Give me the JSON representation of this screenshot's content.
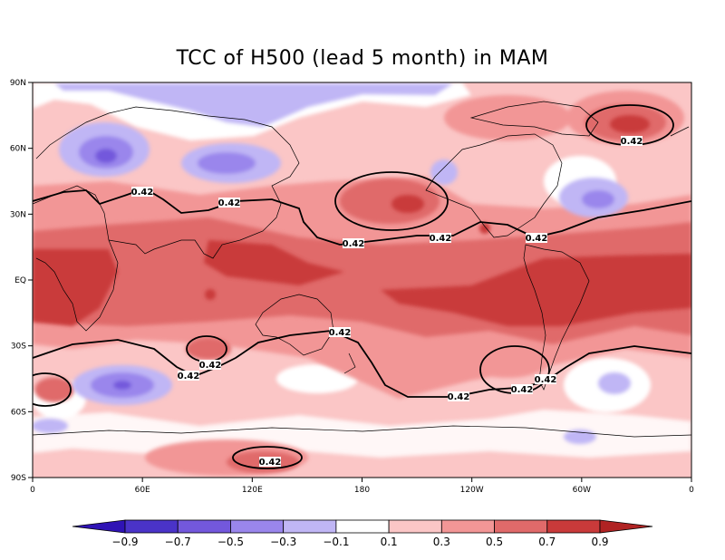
{
  "title": "TCC of H500 (lead 5 month) in MAM",
  "x_ticks": [
    "0",
    "60E",
    "120E",
    "180",
    "120W",
    "60W",
    "0"
  ],
  "y_ticks": [
    "90N",
    "60N",
    "30N",
    "EQ",
    "30S",
    "60S",
    "90S"
  ],
  "contour_label": "0.42",
  "colorbar": {
    "labels": [
      "-0.9",
      "-0.7",
      "-0.5",
      "-0.3",
      "-0.1",
      "0.1",
      "0.3",
      "0.5",
      "0.7",
      "0.9"
    ],
    "colors": [
      "#2f13b5",
      "#4a33c8",
      "#7358dc",
      "#9a86ec",
      "#c0b6f5",
      "#ffffff",
      "#fbc6c6",
      "#f29696",
      "#e06a6a",
      "#c93a3a",
      "#b02323"
    ]
  }
}
